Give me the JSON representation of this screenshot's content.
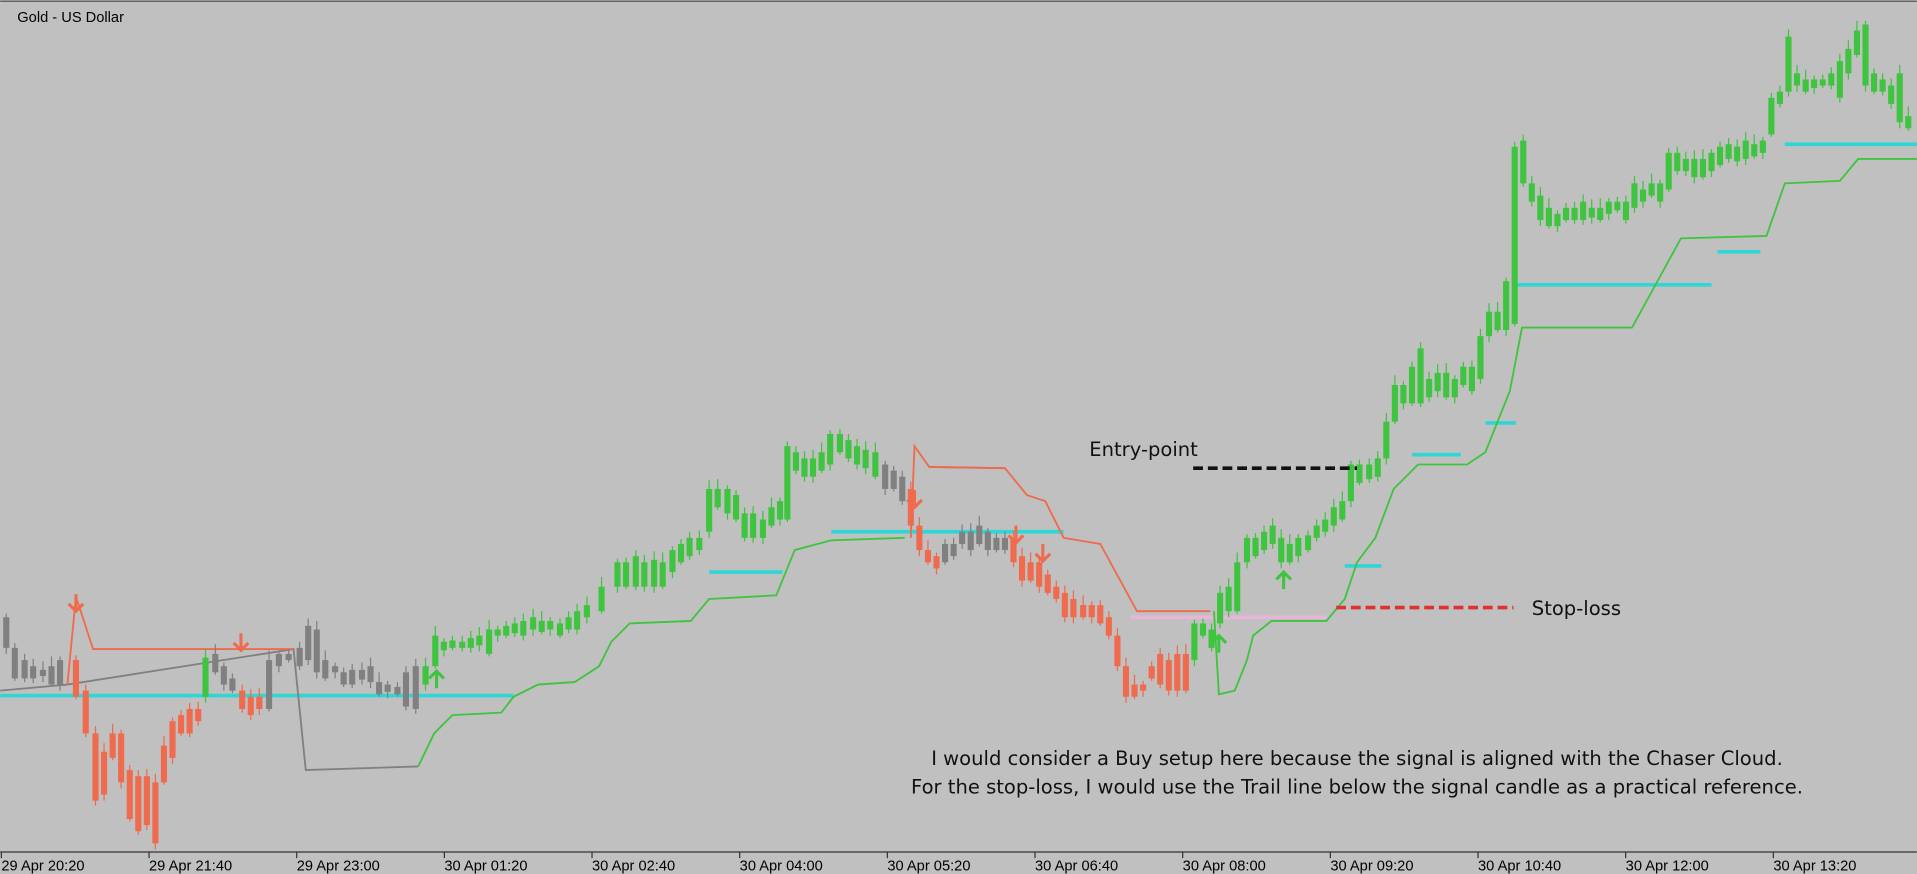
{
  "header": {
    "title": "Gold - US Dollar"
  },
  "time_axis": {
    "labels": [
      "29 Apr 20:20",
      "29 Apr 21:40",
      "29 Apr 23:00",
      "30 Apr 01:20",
      "30 Apr 02:40",
      "30 Apr 04:00",
      "30 Apr 05:20",
      "30 Apr 06:40",
      "30 Apr 08:00",
      "30 Apr 09:20",
      "30 Apr 10:40",
      "30 Apr 12:00",
      "30 Apr 13:20"
    ]
  },
  "annotations": {
    "entry": "Entry-point",
    "stop": "Stop-loss",
    "note": [
      "I would consider a Buy setup here because the signal is aligned with the Chaser Cloud.",
      "For the stop-loss, I would use the Trail line below the signal candle as a practical reference."
    ]
  }
}
